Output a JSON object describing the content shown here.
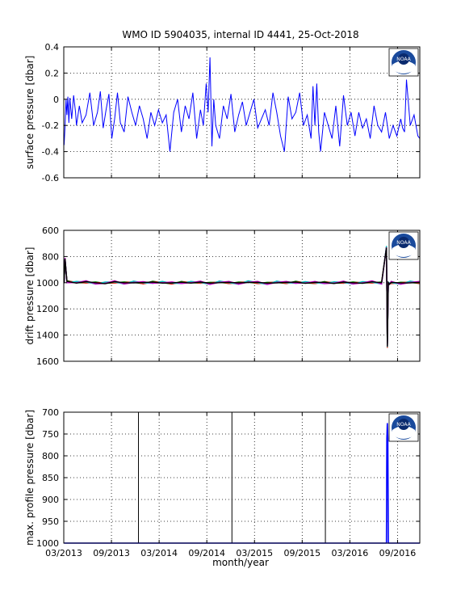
{
  "figure": {
    "title": "WMO ID 5904035, internal ID 4441, 25-Oct-2018",
    "xlabel": "month/year",
    "logo_text": "NOAA"
  },
  "colors": {
    "axes": "#000000",
    "grid": "#000000",
    "trace": "#0000ff",
    "logo_blue": "#1a4a9c",
    "logo_navy": "#0a2a6e",
    "drift_series": [
      "#0000ff",
      "#008000",
      "#ff0000",
      "#00bfbf",
      "#bf00bf",
      "#000000"
    ]
  },
  "chart_data": [
    {
      "type": "line",
      "ylabel": "surface pressure [dbar]",
      "x_range": [
        2013.1667,
        2016.9
      ],
      "ylim": [
        -0.6,
        0.4
      ],
      "yticks": [
        0.4,
        0.2,
        0,
        -0.2,
        -0.4,
        -0.6
      ],
      "ytick_labels": [
        "0.4",
        "0.2",
        "0",
        "-0.2",
        "-0.4",
        "-0.6"
      ],
      "grid": true,
      "series": [
        {
          "x": [
            2013.17,
            2013.18,
            2013.19,
            2013.2,
            2013.21,
            2013.22,
            2013.23,
            2013.25,
            2013.27,
            2013.29,
            2013.3,
            2013.33,
            2013.36,
            2013.4,
            2013.44,
            2013.48,
            2013.52,
            2013.55,
            2013.58,
            2013.61,
            2013.64,
            2013.67,
            2013.7,
            2013.73,
            2013.76,
            2013.8,
            2013.84,
            2013.88,
            2013.92,
            2013.96,
            2014.0,
            2014.04,
            2014.08,
            2014.12,
            2014.16,
            2014.2,
            2014.24,
            2014.28,
            2014.32,
            2014.36,
            2014.4,
            2014.44,
            2014.48,
            2014.52,
            2014.56,
            2014.6,
            2014.63,
            2014.66,
            2014.68,
            2014.7,
            2014.72,
            2014.74,
            2014.76,
            2014.8,
            2014.84,
            2014.88,
            2014.92,
            2014.96,
            2015.0,
            2015.04,
            2015.08,
            2015.12,
            2015.16,
            2015.2,
            2015.24,
            2015.28,
            2015.32,
            2015.36,
            2015.4,
            2015.44,
            2015.48,
            2015.52,
            2015.56,
            2015.6,
            2015.64,
            2015.68,
            2015.72,
            2015.76,
            2015.78,
            2015.8,
            2015.82,
            2015.84,
            2015.86,
            2015.9,
            2015.94,
            2015.98,
            2016.02,
            2016.06,
            2016.1,
            2016.14,
            2016.18,
            2016.22,
            2016.26,
            2016.3,
            2016.34,
            2016.38,
            2016.42,
            2016.46,
            2016.5,
            2016.54,
            2016.58,
            2016.62,
            2016.66,
            2016.7,
            2016.72,
            2016.74,
            2016.76,
            2016.8,
            2016.84,
            2016.88,
            2016.9
          ],
          "y": [
            -0.35,
            -0.2,
            0.0,
            -0.12,
            0.02,
            -0.18,
            0.01,
            -0.15,
            0.03,
            -0.1,
            -0.2,
            -0.05,
            -0.18,
            -0.12,
            0.05,
            -0.2,
            -0.1,
            0.06,
            -0.22,
            -0.08,
            0.04,
            -0.3,
            -0.15,
            0.05,
            -0.18,
            -0.25,
            0.02,
            -0.1,
            -0.2,
            -0.05,
            -0.15,
            -0.3,
            -0.1,
            -0.2,
            -0.08,
            -0.18,
            -0.12,
            -0.4,
            -0.1,
            0.0,
            -0.25,
            -0.05,
            -0.15,
            0.05,
            -0.3,
            -0.08,
            -0.2,
            0.12,
            -0.1,
            0.32,
            -0.36,
            0.0,
            -0.2,
            -0.3,
            -0.05,
            -0.15,
            0.04,
            -0.25,
            -0.12,
            -0.02,
            -0.2,
            -0.1,
            0.0,
            -0.22,
            -0.15,
            -0.08,
            -0.2,
            0.05,
            -0.1,
            -0.28,
            -0.4,
            0.02,
            -0.15,
            -0.1,
            0.05,
            -0.2,
            -0.12,
            -0.3,
            0.1,
            -0.2,
            0.12,
            -0.25,
            -0.4,
            -0.1,
            -0.2,
            -0.3,
            -0.05,
            -0.36,
            0.03,
            -0.2,
            -0.1,
            -0.28,
            -0.1,
            -0.22,
            -0.15,
            -0.3,
            -0.05,
            -0.2,
            -0.25,
            -0.1,
            -0.3,
            -0.2,
            -0.28,
            -0.15,
            -0.22,
            -0.25,
            0.15,
            -0.2,
            -0.12,
            -0.28,
            -0.3
          ]
        }
      ]
    },
    {
      "type": "line",
      "ylabel": "drift pressure [dbar]",
      "x_range": [
        2013.1667,
        2016.9
      ],
      "ylim": [
        600,
        1600
      ],
      "yticks": [
        600,
        800,
        1000,
        1200,
        1400,
        1600
      ],
      "ytick_labels": [
        "600",
        "800",
        "1000",
        "1200",
        "1400",
        "1600"
      ],
      "y_reversed": true,
      "grid": true,
      "series": [
        {
          "x": [
            2013.17,
            2013.18,
            2013.2,
            2013.3,
            2013.4,
            2013.5,
            2013.6,
            2013.7,
            2013.8,
            2013.9,
            2014.0,
            2014.1,
            2014.2,
            2014.3,
            2014.4,
            2014.5,
            2014.6,
            2014.7,
            2014.8,
            2014.9,
            2015.0,
            2015.1,
            2015.2,
            2015.3,
            2015.4,
            2015.5,
            2015.6,
            2015.7,
            2015.8,
            2015.9,
            2016.0,
            2016.1,
            2016.2,
            2016.3,
            2016.4,
            2016.5,
            2016.55,
            2016.56,
            2016.57,
            2016.58,
            2016.6,
            2016.7,
            2016.8,
            2016.9
          ],
          "y": [
            1000,
            820,
            990,
            1000,
            995,
            1000,
            1005,
            995,
            1000,
            998,
            1002,
            995,
            1000,
            1004,
            996,
            1000,
            998,
            1003,
            997,
            1000,
            1001,
            996,
            1000,
            1003,
            998,
            1000,
            995,
            1002,
            1000,
            997,
            1003,
            998,
            1000,
            1002,
            996,
            1000,
            730,
            1490,
            1000,
            1010,
            1000,
            1002,
            998,
            1000
          ]
        }
      ]
    },
    {
      "type": "line",
      "ylabel": "max. profile pressure [dbar]",
      "xlabel": "month/year",
      "x_range": [
        2013.1667,
        2016.9
      ],
      "ylim": [
        700,
        1000
      ],
      "yticks": [
        700,
        750,
        800,
        850,
        900,
        950,
        1000
      ],
      "ytick_labels": [
        "700",
        "750",
        "800",
        "850",
        "900",
        "950",
        "1000"
      ],
      "y_reversed": true,
      "grid": true,
      "xticks": [
        2013.1667,
        2013.6667,
        2014.1667,
        2014.6667,
        2015.1667,
        2015.6667,
        2016.1667,
        2016.6667
      ],
      "xtick_labels": [
        "03/2013",
        "09/2013",
        "03/2014",
        "09/2014",
        "03/2015",
        "09/2015",
        "03/2016",
        "09/2016"
      ],
      "vertical_markers": [
        2013.95,
        2014.93,
        2015.91
      ],
      "series": [
        {
          "x": [
            2013.17,
            2013.5,
            2013.8,
            2014.2,
            2014.5,
            2014.8,
            2015.1,
            2015.4,
            2015.7,
            2016.0,
            2016.3,
            2016.55,
            2016.555,
            2016.56,
            2016.565,
            2016.57,
            2016.6,
            2016.9
          ],
          "y": [
            1000,
            1000,
            1000,
            1000,
            1000,
            1000,
            1000,
            1000,
            1000,
            1000,
            1000,
            1000,
            760,
            725,
            760,
            1000,
            1000,
            1000
          ]
        }
      ]
    }
  ]
}
